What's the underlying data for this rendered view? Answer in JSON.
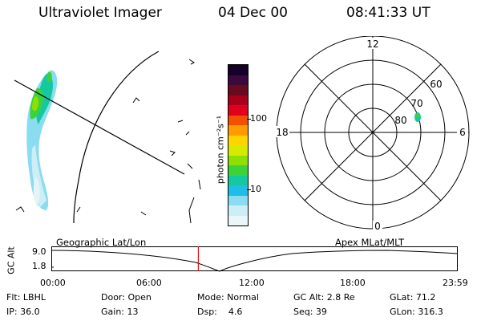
{
  "header": {
    "instrument": "Ultraviolet Imager",
    "date": "04 Dec 00",
    "time": "08:41:33 UT"
  },
  "colorbar": {
    "unit_label": "photon cm⁻²s⁻¹",
    "ticks": [
      "100",
      "10"
    ],
    "colors": [
      "#140028",
      "#3a0a3c",
      "#6a0a1e",
      "#a8001a",
      "#e0001e",
      "#f25000",
      "#ff9a00",
      "#ffd400",
      "#d6ea00",
      "#8ee000",
      "#3cd23c",
      "#16c8a0",
      "#1ebee6",
      "#8adcf0",
      "#cdeef6",
      "#eaf6fa"
    ]
  },
  "polar_plot": {
    "mlt_labels": [
      "12",
      "18",
      "6",
      "0"
    ],
    "lat_labels": [
      "60",
      "70",
      "80"
    ]
  },
  "timeline": {
    "left_label": "Geographic Lat/Lon",
    "right_label": "Apex MLat/MLT",
    "axis_label": "GC Alt",
    "y_ticks": [
      "9.0",
      "1.8"
    ],
    "x_ticks": [
      "00:00",
      "06:00",
      "12:00",
      "18:00",
      "23:59"
    ],
    "cursor_time": "08:41:33",
    "cursor_color": "#e01010"
  },
  "status": {
    "filter": "Flt: LBHL",
    "ip": "IP: 36.0",
    "door": "Door: Open",
    "gain": "Gain: 13",
    "mode": "Mode: Normal",
    "dsp": "Dsp:    4.6",
    "gc_alt": "GC Alt: 2.8 Re",
    "seq": "Seq: 39",
    "glat": "GLat: 71.2",
    "glon": "GLon: 316.3"
  }
}
